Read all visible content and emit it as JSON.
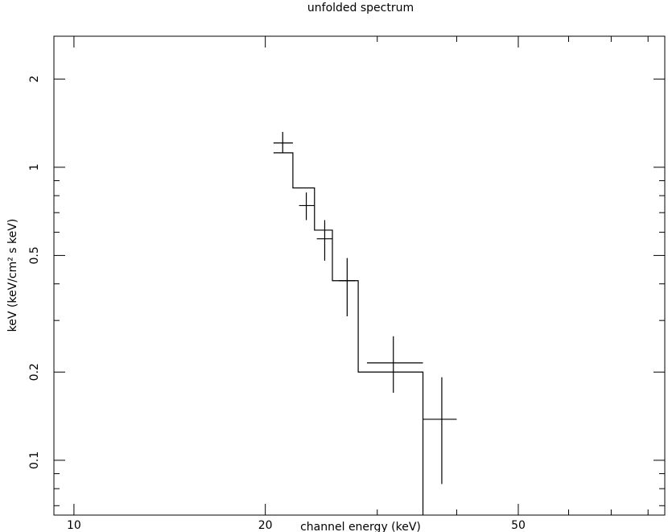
{
  "chart_data": {
    "type": "scatter",
    "title": "unfolded spectrum",
    "xlabel": "channel energy (keV)",
    "ylabel": "keV (keV/cm² s keV)",
    "x_scale": "log",
    "y_scale": "log",
    "xlim": [
      9.3,
      85
    ],
    "ylim": [
      0.065,
      2.8
    ],
    "xticks_major": [
      10,
      20,
      50
    ],
    "xtick_labels": [
      "10",
      "20",
      "50"
    ],
    "yticks_major": [
      0.1,
      0.2,
      0.5,
      1,
      2
    ],
    "ytick_labels": [
      "0.1",
      "0.2",
      "0.5",
      "1",
      "2"
    ],
    "grid": false,
    "points": [
      {
        "x": 21.3,
        "xlo": 20.6,
        "xhi": 22.1,
        "y": 1.21,
        "ylo": 1.12,
        "yhi": 1.32
      },
      {
        "x": 23.2,
        "xlo": 22.6,
        "xhi": 23.9,
        "y": 0.74,
        "ylo": 0.66,
        "yhi": 0.82
      },
      {
        "x": 24.8,
        "xlo": 24.1,
        "xhi": 25.5,
        "y": 0.57,
        "ylo": 0.48,
        "yhi": 0.66
      },
      {
        "x": 26.9,
        "xlo": 26.1,
        "xhi": 27.7,
        "y": 0.41,
        "ylo": 0.31,
        "yhi": 0.49
      },
      {
        "x": 31.8,
        "xlo": 28.9,
        "xhi": 35.4,
        "y": 0.215,
        "ylo": 0.17,
        "yhi": 0.265
      },
      {
        "x": 37.9,
        "xlo": 35.4,
        "xhi": 40.0,
        "y": 0.138,
        "ylo": 0.083,
        "yhi": 0.192
      }
    ],
    "model_steps": [
      {
        "x0": 20.6,
        "x1": 22.1,
        "y": 1.12
      },
      {
        "x0": 22.1,
        "x1": 23.9,
        "y": 0.85
      },
      {
        "x0": 23.9,
        "x1": 25.5,
        "y": 0.61
      },
      {
        "x0": 25.5,
        "x1": 28.0,
        "y": 0.41
      },
      {
        "x0": 28.0,
        "x1": 35.4,
        "y": 0.2
      }
    ],
    "model_drop_to": 0.065
  }
}
